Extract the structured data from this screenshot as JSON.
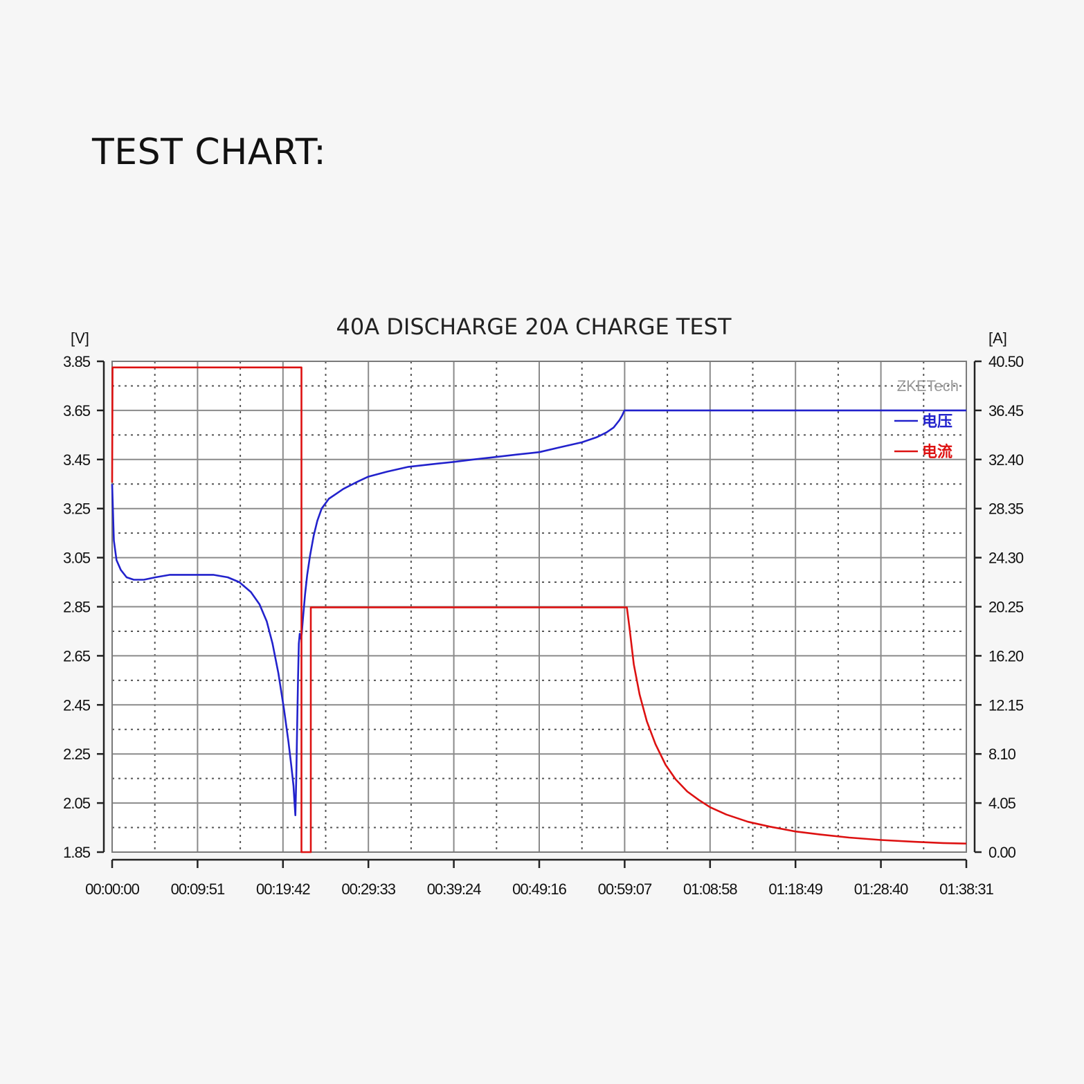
{
  "page": {
    "heading": "TEST CHART:"
  },
  "chart_data": {
    "type": "line",
    "title": "40A DISCHARGE 20A CHARGE TEST",
    "y_left_unit": "[V]",
    "y_right_unit": "[A]",
    "watermark": "ZKETech",
    "xlim": [
      0,
      5911
    ],
    "ylim_left": [
      1.85,
      3.85
    ],
    "ylim_right": [
      0,
      40.5
    ],
    "x_ticks": [
      {
        "t": 0,
        "label": "00:00:00"
      },
      {
        "t": 591,
        "label": "00:09:51"
      },
      {
        "t": 1182,
        "label": "00:19:42"
      },
      {
        "t": 1773,
        "label": "00:29:33"
      },
      {
        "t": 2364,
        "label": "00:39:24"
      },
      {
        "t": 2956,
        "label": "00:49:16"
      },
      {
        "t": 3547,
        "label": "00:59:07"
      },
      {
        "t": 4138,
        "label": "01:08:58"
      },
      {
        "t": 4729,
        "label": "01:18:49"
      },
      {
        "t": 5320,
        "label": "01:28:40"
      },
      {
        "t": 5911,
        "label": "01:38:31"
      }
    ],
    "y_left_ticks": [
      "3.85",
      "3.65",
      "3.45",
      "3.25",
      "3.05",
      "2.85",
      "2.65",
      "2.45",
      "2.25",
      "2.05",
      "1.85"
    ],
    "y_right_ticks": [
      "40.50",
      "36.45",
      "32.40",
      "28.35",
      "24.30",
      "20.25",
      "16.20",
      "12.15",
      "8.10",
      "4.05",
      "0.00"
    ],
    "grid": true,
    "legend_position": "top-right",
    "series": [
      {
        "name": "电压",
        "axis": "left",
        "color": "#2222cc",
        "points": [
          [
            0,
            3.35
          ],
          [
            12,
            3.12
          ],
          [
            30,
            3.04
          ],
          [
            60,
            3.0
          ],
          [
            100,
            2.97
          ],
          [
            150,
            2.96
          ],
          [
            220,
            2.96
          ],
          [
            300,
            2.97
          ],
          [
            400,
            2.98
          ],
          [
            500,
            2.98
          ],
          [
            591,
            2.98
          ],
          [
            700,
            2.98
          ],
          [
            800,
            2.97
          ],
          [
            880,
            2.95
          ],
          [
            960,
            2.91
          ],
          [
            1020,
            2.86
          ],
          [
            1070,
            2.79
          ],
          [
            1110,
            2.7
          ],
          [
            1150,
            2.58
          ],
          [
            1190,
            2.43
          ],
          [
            1220,
            2.3
          ],
          [
            1240,
            2.2
          ],
          [
            1255,
            2.12
          ],
          [
            1262,
            2.05
          ],
          [
            1268,
            2.0
          ],
          [
            1274,
            2.15
          ],
          [
            1280,
            2.35
          ],
          [
            1286,
            2.55
          ],
          [
            1292,
            2.7
          ],
          [
            1298,
            2.74
          ],
          [
            1306,
            2.72
          ],
          [
            1312,
            2.74
          ],
          [
            1320,
            2.8
          ],
          [
            1335,
            2.9
          ],
          [
            1350,
            2.98
          ],
          [
            1370,
            3.06
          ],
          [
            1395,
            3.14
          ],
          [
            1420,
            3.2
          ],
          [
            1450,
            3.25
          ],
          [
            1500,
            3.29
          ],
          [
            1550,
            3.31
          ],
          [
            1600,
            3.33
          ],
          [
            1700,
            3.36
          ],
          [
            1773,
            3.38
          ],
          [
            1900,
            3.4
          ],
          [
            2050,
            3.42
          ],
          [
            2200,
            3.43
          ],
          [
            2364,
            3.44
          ],
          [
            2500,
            3.45
          ],
          [
            2650,
            3.46
          ],
          [
            2800,
            3.47
          ],
          [
            2956,
            3.48
          ],
          [
            3100,
            3.5
          ],
          [
            3250,
            3.52
          ],
          [
            3350,
            3.54
          ],
          [
            3420,
            3.56
          ],
          [
            3470,
            3.58
          ],
          [
            3510,
            3.61
          ],
          [
            3530,
            3.63
          ],
          [
            3545,
            3.65
          ],
          [
            3600,
            3.65
          ],
          [
            4000,
            3.65
          ],
          [
            5000,
            3.65
          ],
          [
            5911,
            3.65
          ]
        ]
      },
      {
        "name": "电流",
        "axis": "right",
        "color": "#dd1111",
        "points": [
          [
            0,
            30.5
          ],
          [
            3,
            40.0
          ],
          [
            1310,
            40.0
          ],
          [
            1310,
            0.0
          ],
          [
            1375,
            0.0
          ],
          [
            1375,
            20.2
          ],
          [
            3562,
            20.2
          ],
          [
            3580,
            18.5
          ],
          [
            3610,
            15.5
          ],
          [
            3650,
            13.0
          ],
          [
            3700,
            10.8
          ],
          [
            3760,
            8.9
          ],
          [
            3830,
            7.2
          ],
          [
            3900,
            6.0
          ],
          [
            3980,
            5.0
          ],
          [
            4060,
            4.3
          ],
          [
            4138,
            3.7
          ],
          [
            4250,
            3.1
          ],
          [
            4400,
            2.5
          ],
          [
            4550,
            2.1
          ],
          [
            4729,
            1.7
          ],
          [
            4900,
            1.45
          ],
          [
            5100,
            1.2
          ],
          [
            5320,
            1.0
          ],
          [
            5550,
            0.85
          ],
          [
            5750,
            0.75
          ],
          [
            5911,
            0.7
          ]
        ]
      }
    ]
  }
}
